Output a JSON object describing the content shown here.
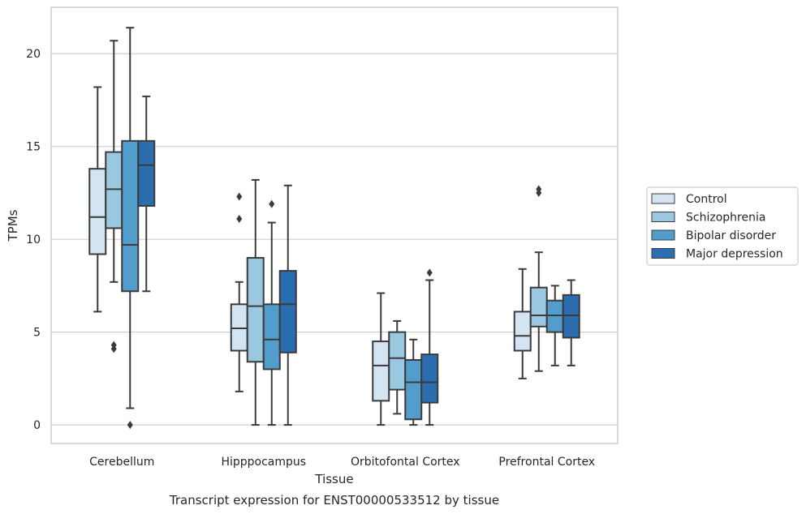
{
  "caption": "Transcript expression for ENST00000533512 by tissue",
  "chart_data": {
    "type": "box",
    "xlabel": "Tissue",
    "ylabel": "TPMs",
    "ylim": [
      -1,
      22.5
    ],
    "yticks": [
      0,
      5,
      10,
      15,
      20
    ],
    "grid": "horizontal",
    "legend_position": "right",
    "categories": [
      "Cerebellum",
      "Hipppocampus",
      "Orbitofontal Cortex",
      "Prefrontal Cortex"
    ],
    "series": [
      {
        "name": "Control",
        "color": "#d3e4f3",
        "boxes": [
          {
            "whislo": 6.1,
            "q1": 9.2,
            "med": 11.2,
            "q3": 13.8,
            "whishi": 18.2,
            "fliers": []
          },
          {
            "whislo": 1.8,
            "q1": 4.0,
            "med": 5.2,
            "q3": 6.5,
            "whishi": 7.7,
            "fliers": [
              11.1,
              12.3
            ]
          },
          {
            "whislo": 0.0,
            "q1": 1.3,
            "med": 3.2,
            "q3": 4.5,
            "whishi": 7.1,
            "fliers": []
          },
          {
            "whislo": 2.5,
            "q1": 4.0,
            "med": 4.8,
            "q3": 6.1,
            "whishi": 8.4,
            "fliers": []
          }
        ]
      },
      {
        "name": "Schizophrenia",
        "color": "#9ac8e0",
        "boxes": [
          {
            "whislo": 7.7,
            "q1": 10.6,
            "med": 12.7,
            "q3": 14.7,
            "whishi": 20.7,
            "fliers": [
              4.1,
              4.3
            ]
          },
          {
            "whislo": 0.0,
            "q1": 3.4,
            "med": 6.4,
            "q3": 9.0,
            "whishi": 13.2,
            "fliers": []
          },
          {
            "whislo": 0.6,
            "q1": 1.9,
            "med": 3.6,
            "q3": 5.0,
            "whishi": 5.6,
            "fliers": []
          },
          {
            "whislo": 2.9,
            "q1": 5.3,
            "med": 5.9,
            "q3": 7.4,
            "whishi": 9.3,
            "fliers": [
              12.5,
              12.7
            ]
          }
        ]
      },
      {
        "name": "Bipolar disorder",
        "color": "#529dcc",
        "boxes": [
          {
            "whislo": 0.9,
            "q1": 7.2,
            "med": 9.7,
            "q3": 15.3,
            "whishi": 21.4,
            "fliers": [
              0.0
            ]
          },
          {
            "whislo": 0.0,
            "q1": 3.0,
            "med": 4.6,
            "q3": 6.5,
            "whishi": 10.9,
            "fliers": [
              11.9
            ]
          },
          {
            "whislo": 0.0,
            "q1": 0.3,
            "med": 2.3,
            "q3": 3.5,
            "whishi": 4.6,
            "fliers": []
          },
          {
            "whislo": 3.2,
            "q1": 5.0,
            "med": 5.9,
            "q3": 6.7,
            "whishi": 7.5,
            "fliers": []
          }
        ]
      },
      {
        "name": "Major depression",
        "color": "#2a6eb0",
        "boxes": [
          {
            "whislo": 7.2,
            "q1": 11.8,
            "med": 14.0,
            "q3": 15.3,
            "whishi": 17.7,
            "fliers": []
          },
          {
            "whislo": 0.0,
            "q1": 3.9,
            "med": 6.5,
            "q3": 8.3,
            "whishi": 12.9,
            "fliers": []
          },
          {
            "whislo": 0.0,
            "q1": 1.2,
            "med": 2.3,
            "q3": 3.8,
            "whishi": 7.8,
            "fliers": [
              8.2
            ]
          },
          {
            "whislo": 3.2,
            "q1": 4.7,
            "med": 5.9,
            "q3": 7.0,
            "whishi": 7.8,
            "fliers": []
          }
        ]
      }
    ]
  }
}
